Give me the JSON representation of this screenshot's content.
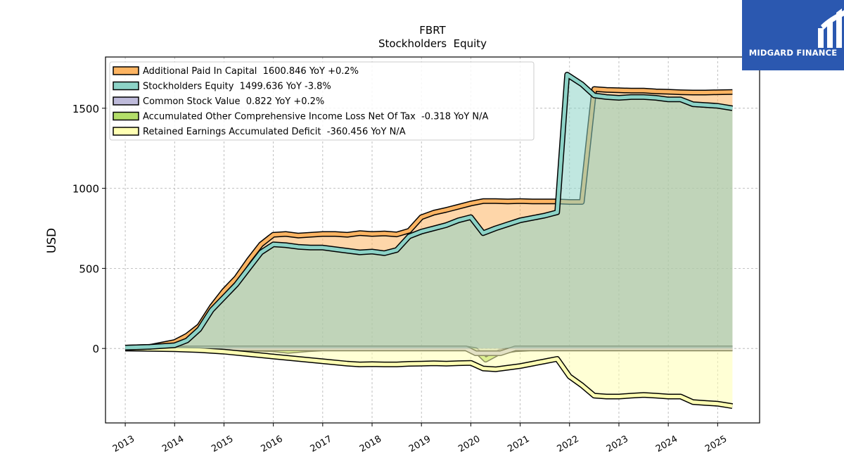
{
  "logo": {
    "text": "MIDGARD FINANCE",
    "icon": "midgard-logo-icon",
    "color": "#2b58b0"
  },
  "chart_data": {
    "type": "area",
    "title": "FBRT",
    "subtitle": "Stockholders  Equity",
    "xlabel": "",
    "ylabel": "USD",
    "xlim": [
      2012.6,
      2025.85
    ],
    "ylim": [
      -465,
      1820
    ],
    "x_ticks": [
      "2013",
      "2014",
      "2015",
      "2016",
      "2017",
      "2018",
      "2019",
      "2020",
      "2021",
      "2022",
      "2023",
      "2024",
      "2025"
    ],
    "y_ticks": [
      0,
      500,
      1000,
      1500
    ],
    "y_tick_labels": [
      "0",
      "500",
      "1000",
      "1500"
    ],
    "grid": true,
    "legend_position": "top-left",
    "series": [
      {
        "name": "Additional Paid In Capital",
        "legend_label": "Additional Paid In Capital  1600.846 YoY +0.2%",
        "color": "#fdb462",
        "x": [
          2013.0,
          2013.5,
          2014.0,
          2014.25,
          2014.5,
          2014.75,
          2015.0,
          2015.25,
          2015.5,
          2015.75,
          2016.0,
          2016.25,
          2016.5,
          2016.75,
          2017.0,
          2017.25,
          2017.5,
          2017.75,
          2018.0,
          2018.25,
          2018.5,
          2018.75,
          2019.0,
          2019.25,
          2019.5,
          2019.75,
          2020.0,
          2020.25,
          2020.5,
          2020.75,
          2021.0,
          2021.25,
          2021.5,
          2021.75,
          2022.0,
          2022.25,
          2022.5,
          2022.75,
          2023.0,
          2023.25,
          2023.5,
          2023.75,
          2024.0,
          2024.25,
          2024.5,
          2024.75,
          2025.0,
          2025.3
        ],
        "values": [
          5,
          10,
          40,
          80,
          140,
          260,
          360,
          440,
          550,
          650,
          710,
          715,
          705,
          710,
          715,
          715,
          710,
          720,
          715,
          718,
          712,
          735,
          820,
          848,
          865,
          885,
          905,
          920,
          920,
          918,
          920,
          918,
          918,
          918,
          915,
          915,
          1620,
          1615,
          1612,
          1610,
          1610,
          1605,
          1603,
          1600,
          1598,
          1598,
          1600,
          1601
        ]
      },
      {
        "name": "Stockholders Equity",
        "legend_label": "Stockholders Equity  1499.636 YoY -3.8%",
        "color": "#8dd3c7",
        "x": [
          2013.0,
          2013.5,
          2014.0,
          2014.25,
          2014.5,
          2014.75,
          2015.0,
          2015.25,
          2015.5,
          2015.75,
          2016.0,
          2016.25,
          2016.5,
          2016.75,
          2017.0,
          2017.25,
          2017.5,
          2017.75,
          2018.0,
          2018.25,
          2018.5,
          2018.75,
          2019.0,
          2019.25,
          2019.5,
          2019.75,
          2020.0,
          2020.25,
          2020.5,
          2020.75,
          2021.0,
          2021.25,
          2021.5,
          2021.75,
          2021.95,
          2022.25,
          2022.5,
          2022.75,
          2023.0,
          2023.25,
          2023.5,
          2023.75,
          2024.0,
          2024.25,
          2024.5,
          2024.75,
          2025.0,
          2025.3
        ],
        "values": [
          5,
          10,
          20,
          50,
          120,
          240,
          320,
          400,
          500,
          600,
          650,
          645,
          635,
          630,
          630,
          620,
          610,
          600,
          605,
          595,
          615,
          700,
          730,
          750,
          770,
          800,
          820,
          720,
          750,
          775,
          800,
          815,
          830,
          850,
          1710,
          1650,
          1580,
          1570,
          1565,
          1570,
          1570,
          1565,
          1555,
          1555,
          1525,
          1520,
          1515,
          1500
        ]
      },
      {
        "name": "Common Stock Value",
        "legend_label": "Common Stock Value  0.822 YoY +0.2%",
        "color": "#bebada",
        "x": [
          2013.0,
          2019.9,
          2020.1,
          2020.3,
          2020.6,
          2020.9,
          2025.3
        ],
        "values": [
          1,
          1,
          -30,
          -30,
          -30,
          1,
          1
        ]
      },
      {
        "name": "Accumulated Other Comprehensive Income Loss Net Of Tax",
        "legend_label": "Accumulated Other Comprehensive Income Loss Net Of Tax  -0.318 YoY N/A",
        "color": "#b3de69",
        "x": [
          2013.0,
          2015.5,
          2016.0,
          2016.3,
          2016.7,
          2017.0,
          2019.9,
          2020.1,
          2020.3,
          2020.6,
          2020.9,
          2021.2,
          2025.3
        ],
        "values": [
          0,
          0,
          -5,
          -15,
          -5,
          0,
          0,
          -10,
          -70,
          -20,
          -5,
          0,
          0
        ]
      },
      {
        "name": "Retained Earnings Accumulated Deficit",
        "legend_label": "Retained Earnings Accumulated Deficit  -360.456 YoY N/A",
        "color": "#ffffb3",
        "x": [
          2013.0,
          2014.0,
          2014.5,
          2015.0,
          2015.5,
          2016.0,
          2016.5,
          2017.0,
          2017.5,
          2017.75,
          2018.0,
          2018.25,
          2018.5,
          2018.75,
          2019.0,
          2019.25,
          2019.5,
          2019.75,
          2020.0,
          2020.25,
          2020.5,
          2020.75,
          2021.0,
          2021.25,
          2021.5,
          2021.75,
          2022.0,
          2022.25,
          2022.5,
          2022.75,
          2023.0,
          2023.25,
          2023.5,
          2023.75,
          2024.0,
          2024.25,
          2024.5,
          2024.75,
          2025.0,
          2025.3
        ],
        "values": [
          0,
          -5,
          -10,
          -20,
          -35,
          -50,
          -65,
          -80,
          -95,
          -100,
          -98,
          -100,
          -100,
          -96,
          -95,
          -93,
          -95,
          -92,
          -90,
          -125,
          -130,
          -120,
          -110,
          -95,
          -80,
          -65,
          -175,
          -230,
          -295,
          -300,
          -300,
          -295,
          -290,
          -295,
          -300,
          -300,
          -335,
          -340,
          -345,
          -360
        ]
      }
    ]
  }
}
